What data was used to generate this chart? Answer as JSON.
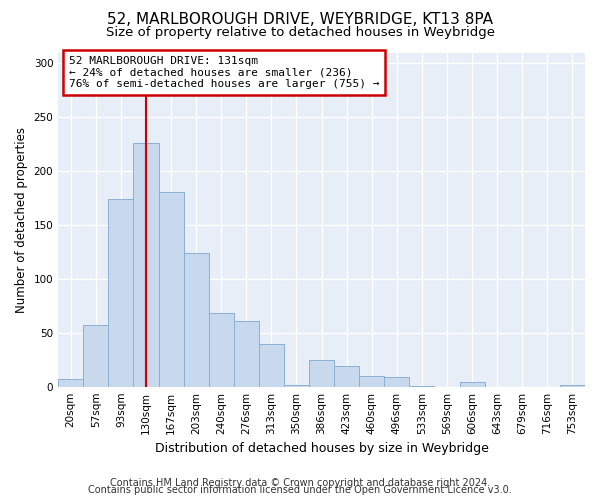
{
  "title1": "52, MARLBOROUGH DRIVE, WEYBRIDGE, KT13 8PA",
  "title2": "Size of property relative to detached houses in Weybridge",
  "xlabel": "Distribution of detached houses by size in Weybridge",
  "ylabel": "Number of detached properties",
  "bar_labels": [
    "20sqm",
    "57sqm",
    "93sqm",
    "130sqm",
    "167sqm",
    "203sqm",
    "240sqm",
    "276sqm",
    "313sqm",
    "350sqm",
    "386sqm",
    "423sqm",
    "460sqm",
    "496sqm",
    "533sqm",
    "569sqm",
    "606sqm",
    "643sqm",
    "679sqm",
    "716sqm",
    "753sqm"
  ],
  "bar_values": [
    7,
    57,
    174,
    226,
    181,
    124,
    68,
    61,
    40,
    2,
    25,
    19,
    10,
    9,
    1,
    0,
    4,
    0,
    0,
    0,
    2
  ],
  "bar_color": "#c8d8ed",
  "bar_edge_color": "#8ab0d4",
  "vline_x_idx": 3,
  "vline_color": "#cc0000",
  "ylim": [
    0,
    310
  ],
  "yticks": [
    0,
    50,
    100,
    150,
    200,
    250,
    300
  ],
  "annotation_title": "52 MARLBOROUGH DRIVE: 131sqm",
  "annotation_line1": "← 24% of detached houses are smaller (236)",
  "annotation_line2": "76% of semi-detached houses are larger (755) →",
  "annotation_box_facecolor": "#ffffff",
  "annotation_box_edgecolor": "#cc0000",
  "footer1": "Contains HM Land Registry data © Crown copyright and database right 2024.",
  "footer2": "Contains public sector information licensed under the Open Government Licence v3.0.",
  "bg_color": "#ffffff",
  "plot_bg_color": "#e8eef7",
  "title1_fontsize": 11,
  "title2_fontsize": 9.5,
  "xlabel_fontsize": 9,
  "ylabel_fontsize": 8.5,
  "tick_fontsize": 7.5,
  "footer_fontsize": 7
}
